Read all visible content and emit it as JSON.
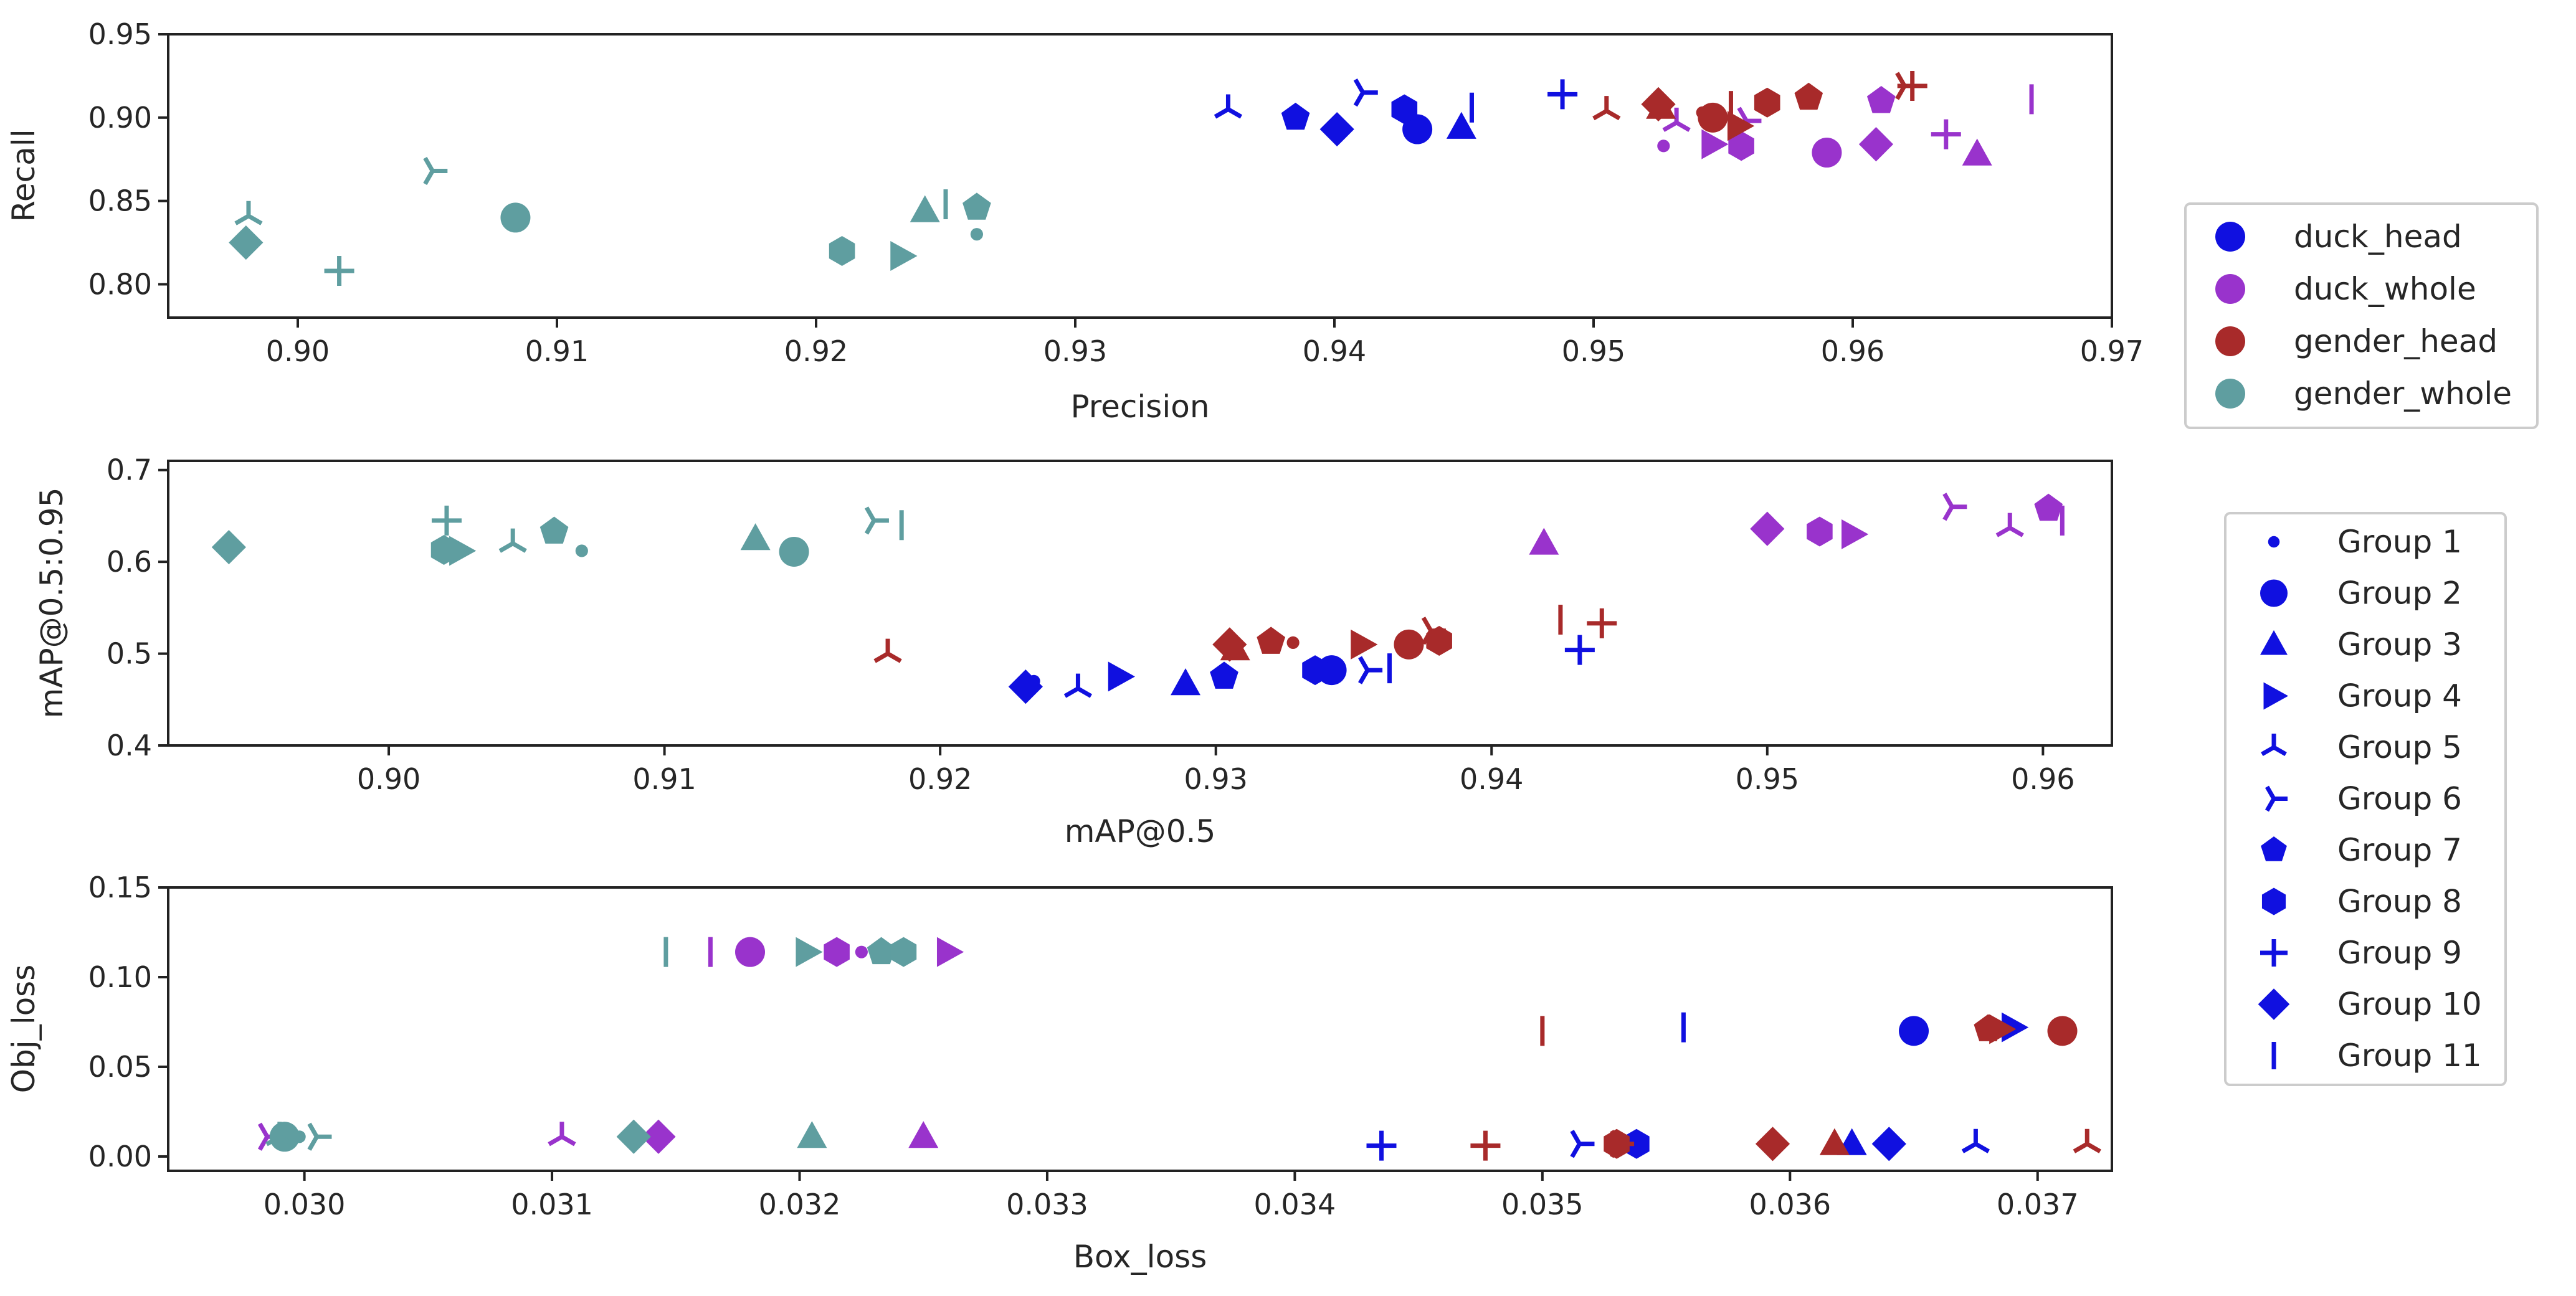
{
  "figure": {
    "colors": {
      "duck_head": "#1010e0",
      "duck_whole": "#9933cc",
      "gender_head": "#a82a2a",
      "gender_whole": "#5f9ea0"
    }
  },
  "chart_data": [
    {
      "type": "scatter",
      "xlabel": "Precision",
      "ylabel": "Recall",
      "xlim": [
        0.895,
        0.97
      ],
      "ylim": [
        0.78,
        0.95
      ],
      "xticks": [
        0.9,
        0.91,
        0.92,
        0.93,
        0.94,
        0.95,
        0.96,
        0.97
      ],
      "xtick_labels": [
        "0.90",
        "0.91",
        "0.92",
        "0.93",
        "0.94",
        "0.95",
        "0.96",
        "0.97"
      ],
      "yticks": [
        0.8,
        0.85,
        0.9,
        0.95
      ],
      "ytick_labels": [
        "0.80",
        "0.85",
        "0.90",
        "0.95"
      ],
      "series": [
        {
          "name": "duck_head",
          "points": [
            {
              "group": 1,
              "x": 0.9385,
              "y": 0.902
            },
            {
              "group": 2,
              "x": 0.9432,
              "y": 0.893
            },
            {
              "group": 3,
              "x": 0.9449,
              "y": 0.894
            },
            {
              "group": 5,
              "x": 0.9359,
              "y": 0.905
            },
            {
              "group": 6,
              "x": 0.9411,
              "y": 0.915
            },
            {
              "group": 7,
              "x": 0.9385,
              "y": 0.9
            },
            {
              "group": 8,
              "x": 0.9427,
              "y": 0.905
            },
            {
              "group": 9,
              "x": 0.9488,
              "y": 0.914
            },
            {
              "group": 10,
              "x": 0.9401,
              "y": 0.893
            },
            {
              "group": 11,
              "x": 0.9453,
              "y": 0.906
            }
          ]
        },
        {
          "name": "duck_whole",
          "points": [
            {
              "group": 1,
              "x": 0.9527,
              "y": 0.883
            },
            {
              "group": 2,
              "x": 0.959,
              "y": 0.879
            },
            {
              "group": 3,
              "x": 0.9648,
              "y": 0.878
            },
            {
              "group": 4,
              "x": 0.9546,
              "y": 0.884
            },
            {
              "group": 5,
              "x": 0.9532,
              "y": 0.897
            },
            {
              "group": 6,
              "x": 0.9559,
              "y": 0.898
            },
            {
              "group": 7,
              "x": 0.9611,
              "y": 0.91
            },
            {
              "group": 8,
              "x": 0.9557,
              "y": 0.883
            },
            {
              "group": 9,
              "x": 0.9636,
              "y": 0.89
            },
            {
              "group": 10,
              "x": 0.9609,
              "y": 0.884
            },
            {
              "group": 11,
              "x": 0.9669,
              "y": 0.911
            }
          ]
        },
        {
          "name": "gender_head",
          "points": [
            {
              "group": 1,
              "x": 0.9542,
              "y": 0.903
            },
            {
              "group": 2,
              "x": 0.9546,
              "y": 0.9
            },
            {
              "group": 3,
              "x": 0.9526,
              "y": 0.906
            },
            {
              "group": 4,
              "x": 0.9556,
              "y": 0.895
            },
            {
              "group": 5,
              "x": 0.9505,
              "y": 0.904
            },
            {
              "group": 6,
              "x": 0.962,
              "y": 0.919
            },
            {
              "group": 7,
              "x": 0.9583,
              "y": 0.912
            },
            {
              "group": 8,
              "x": 0.9567,
              "y": 0.909
            },
            {
              "group": 9,
              "x": 0.9623,
              "y": 0.919
            },
            {
              "group": 10,
              "x": 0.9525,
              "y": 0.908
            },
            {
              "group": 11,
              "x": 0.9553,
              "y": 0.907
            }
          ]
        },
        {
          "name": "gender_whole",
          "points": [
            {
              "group": 1,
              "x": 0.9262,
              "y": 0.83
            },
            {
              "group": 2,
              "x": 0.9084,
              "y": 0.84
            },
            {
              "group": 3,
              "x": 0.9242,
              "y": 0.844
            },
            {
              "group": 4,
              "x": 0.9233,
              "y": 0.817
            },
            {
              "group": 5,
              "x": 0.8981,
              "y": 0.841
            },
            {
              "group": 6,
              "x": 0.9052,
              "y": 0.868
            },
            {
              "group": 7,
              "x": 0.9262,
              "y": 0.846
            },
            {
              "group": 8,
              "x": 0.921,
              "y": 0.82
            },
            {
              "group": 9,
              "x": 0.9016,
              "y": 0.808
            },
            {
              "group": 10,
              "x": 0.898,
              "y": 0.825
            },
            {
              "group": 11,
              "x": 0.925,
              "y": 0.848
            }
          ]
        }
      ]
    },
    {
      "type": "scatter",
      "xlabel": "mAP@0.5",
      "ylabel": "mAP@0.5:0.95",
      "xlim": [
        0.892,
        0.9625
      ],
      "ylim": [
        0.4,
        0.71
      ],
      "xticks": [
        0.9,
        0.91,
        0.92,
        0.93,
        0.94,
        0.95,
        0.96
      ],
      "xtick_labels": [
        "0.90",
        "0.91",
        "0.92",
        "0.93",
        "0.94",
        "0.95",
        "0.96"
      ],
      "yticks": [
        0.4,
        0.5,
        0.6,
        0.7
      ],
      "ytick_labels": [
        "0.4",
        "0.5",
        "0.6",
        "0.7"
      ],
      "series": [
        {
          "name": "duck_head",
          "points": [
            {
              "group": 1,
              "x": 0.9234,
              "y": 0.47
            },
            {
              "group": 2,
              "x": 0.9342,
              "y": 0.482
            },
            {
              "group": 3,
              "x": 0.9289,
              "y": 0.467
            },
            {
              "group": 4,
              "x": 0.9265,
              "y": 0.475
            },
            {
              "group": 5,
              "x": 0.925,
              "y": 0.462
            },
            {
              "group": 6,
              "x": 0.9355,
              "y": 0.482
            },
            {
              "group": 7,
              "x": 0.9303,
              "y": 0.475
            },
            {
              "group": 8,
              "x": 0.9336,
              "y": 0.482
            },
            {
              "group": 9,
              "x": 0.9432,
              "y": 0.504
            },
            {
              "group": 10,
              "x": 0.9231,
              "y": 0.464
            },
            {
              "group": 11,
              "x": 0.9363,
              "y": 0.484
            }
          ]
        },
        {
          "name": "duck_whole",
          "points": [
            {
              "group": 3,
              "x": 0.9419,
              "y": 0.62
            },
            {
              "group": 4,
              "x": 0.9531,
              "y": 0.63
            },
            {
              "group": 5,
              "x": 0.9588,
              "y": 0.637
            },
            {
              "group": 6,
              "x": 0.9567,
              "y": 0.66
            },
            {
              "group": 7,
              "x": 0.9602,
              "y": 0.658
            },
            {
              "group": 8,
              "x": 0.9519,
              "y": 0.633
            },
            {
              "group": 10,
              "x": 0.95,
              "y": 0.636
            },
            {
              "group": 11,
              "x": 0.9607,
              "y": 0.645
            }
          ]
        },
        {
          "name": "gender_head",
          "points": [
            {
              "group": 1,
              "x": 0.9328,
              "y": 0.512
            },
            {
              "group": 2,
              "x": 0.937,
              "y": 0.51
            },
            {
              "group": 3,
              "x": 0.9307,
              "y": 0.505
            },
            {
              "group": 4,
              "x": 0.9353,
              "y": 0.51
            },
            {
              "group": 5,
              "x": 0.9181,
              "y": 0.5
            },
            {
              "group": 6,
              "x": 0.9378,
              "y": 0.525
            },
            {
              "group": 7,
              "x": 0.932,
              "y": 0.513
            },
            {
              "group": 8,
              "x": 0.9381,
              "y": 0.514
            },
            {
              "group": 9,
              "x": 0.944,
              "y": 0.533
            },
            {
              "group": 10,
              "x": 0.9305,
              "y": 0.51
            },
            {
              "group": 11,
              "x": 0.9425,
              "y": 0.537
            }
          ]
        },
        {
          "name": "gender_whole",
          "points": [
            {
              "group": 1,
              "x": 0.907,
              "y": 0.612
            },
            {
              "group": 2,
              "x": 0.9147,
              "y": 0.611
            },
            {
              "group": 3,
              "x": 0.9133,
              "y": 0.625
            },
            {
              "group": 4,
              "x": 0.9026,
              "y": 0.612
            },
            {
              "group": 5,
              "x": 0.9045,
              "y": 0.62
            },
            {
              "group": 6,
              "x": 0.9176,
              "y": 0.645
            },
            {
              "group": 7,
              "x": 0.906,
              "y": 0.633
            },
            {
              "group": 8,
              "x": 0.902,
              "y": 0.613
            },
            {
              "group": 9,
              "x": 0.9021,
              "y": 0.645
            },
            {
              "group": 10,
              "x": 0.8942,
              "y": 0.616
            },
            {
              "group": 11,
              "x": 0.9186,
              "y": 0.64
            }
          ]
        }
      ]
    },
    {
      "type": "scatter",
      "xlabel": "Box_loss",
      "ylabel": "Obj_loss",
      "xlim": [
        0.02945,
        0.0373
      ],
      "ylim": [
        -0.008,
        0.15
      ],
      "xticks": [
        0.03,
        0.031,
        0.032,
        0.033,
        0.034,
        0.035,
        0.036,
        0.037
      ],
      "xtick_labels": [
        "0.030",
        "0.031",
        "0.032",
        "0.033",
        "0.034",
        "0.035",
        "0.036",
        "0.037"
      ],
      "yticks": [
        0.0,
        0.05,
        0.1,
        0.15
      ],
      "ytick_labels": [
        "0.00",
        "0.05",
        "0.10",
        "0.15"
      ],
      "series": [
        {
          "name": "duck_head",
          "points": [
            {
              "group": 2,
              "x": 0.0365,
              "y": 0.07
            },
            {
              "group": 3,
              "x": 0.03625,
              "y": 0.007
            },
            {
              "group": 4,
              "x": 0.0369,
              "y": 0.072
            },
            {
              "group": 5,
              "x": 0.03675,
              "y": 0.007
            },
            {
              "group": 6,
              "x": 0.03515,
              "y": 0.007
            },
            {
              "group": 8,
              "x": 0.03538,
              "y": 0.007
            },
            {
              "group": 9,
              "x": 0.03435,
              "y": 0.006
            },
            {
              "group": 10,
              "x": 0.0364,
              "y": 0.007
            },
            {
              "group": 11,
              "x": 0.03557,
              "y": 0.072
            }
          ]
        },
        {
          "name": "duck_whole",
          "points": [
            {
              "group": 1,
              "x": 0.03225,
              "y": 0.114
            },
            {
              "group": 2,
              "x": 0.0318,
              "y": 0.114
            },
            {
              "group": 3,
              "x": 0.0325,
              "y": 0.011
            },
            {
              "group": 4,
              "x": 0.0326,
              "y": 0.114
            },
            {
              "group": 5,
              "x": 0.03104,
              "y": 0.011
            },
            {
              "group": 6,
              "x": 0.02985,
              "y": 0.011
            },
            {
              "group": 8,
              "x": 0.03215,
              "y": 0.114
            },
            {
              "group": 10,
              "x": 0.03143,
              "y": 0.011
            },
            {
              "group": 11,
              "x": 0.03164,
              "y": 0.114
            }
          ]
        },
        {
          "name": "gender_head",
          "points": [
            {
              "group": 2,
              "x": 0.0371,
              "y": 0.07
            },
            {
              "group": 3,
              "x": 0.03618,
              "y": 0.007
            },
            {
              "group": 4,
              "x": 0.03685,
              "y": 0.071
            },
            {
              "group": 5,
              "x": 0.0372,
              "y": 0.007
            },
            {
              "group": 6,
              "x": 0.03531,
              "y": 0.007
            },
            {
              "group": 7,
              "x": 0.0368,
              "y": 0.071
            },
            {
              "group": 8,
              "x": 0.0353,
              "y": 0.007
            },
            {
              "group": 9,
              "x": 0.03477,
              "y": 0.006
            },
            {
              "group": 10,
              "x": 0.03593,
              "y": 0.007
            },
            {
              "group": 11,
              "x": 0.035,
              "y": 0.07
            }
          ]
        },
        {
          "name": "gender_whole",
          "points": [
            {
              "group": 1,
              "x": 0.02998,
              "y": 0.011
            },
            {
              "group": 2,
              "x": 0.02992,
              "y": 0.011
            },
            {
              "group": 3,
              "x": 0.03205,
              "y": 0.011
            },
            {
              "group": 4,
              "x": 0.03203,
              "y": 0.114
            },
            {
              "group": 5,
              "x": 0.0299,
              "y": 0.011
            },
            {
              "group": 6,
              "x": 0.03005,
              "y": 0.011
            },
            {
              "group": 7,
              "x": 0.03233,
              "y": 0.114
            },
            {
              "group": 8,
              "x": 0.03242,
              "y": 0.114
            },
            {
              "group": 10,
              "x": 0.03133,
              "y": 0.011
            },
            {
              "group": 11,
              "x": 0.03146,
              "y": 0.114
            }
          ]
        }
      ]
    }
  ],
  "legends": {
    "datasets": [
      {
        "name": "duck_head",
        "label": "duck_head"
      },
      {
        "name": "duck_whole",
        "label": "duck_whole"
      },
      {
        "name": "gender_head",
        "label": "gender_head"
      },
      {
        "name": "gender_whole",
        "label": "gender_whole"
      }
    ],
    "groups": [
      {
        "group": 1,
        "label": "Group 1"
      },
      {
        "group": 2,
        "label": "Group 2"
      },
      {
        "group": 3,
        "label": "Group 3"
      },
      {
        "group": 4,
        "label": "Group 4"
      },
      {
        "group": 5,
        "label": "Group 5"
      },
      {
        "group": 6,
        "label": "Group 6"
      },
      {
        "group": 7,
        "label": "Group 7"
      },
      {
        "group": 8,
        "label": "Group 8"
      },
      {
        "group": 9,
        "label": "Group 9"
      },
      {
        "group": 10,
        "label": "Group 10"
      },
      {
        "group": 11,
        "label": "Group 11"
      }
    ]
  }
}
